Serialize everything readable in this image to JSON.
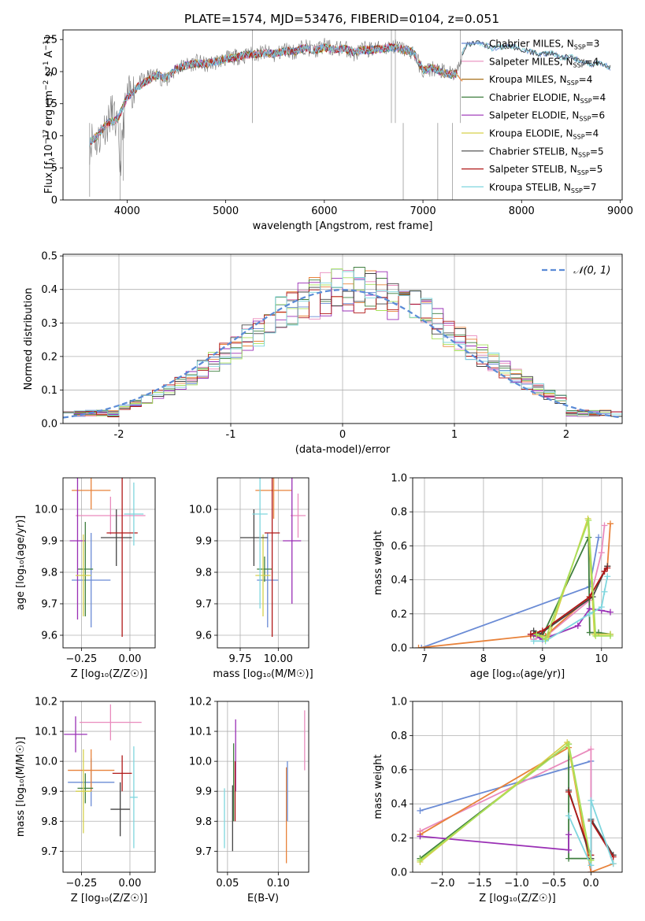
{
  "figure": {
    "title": "PLATE=1574, MJD=53476, FIBERID=0104, z=0.051"
  },
  "colors": {
    "Chabrier MILES": "#6a8bd5",
    "Salpeter MILES": "#e98bbd",
    "Kroupa MILES": "#a8711a",
    "Chabrier ELODIE": "#3f7f3f",
    "Salpeter ELODIE": "#9a2fb5",
    "Kroupa ELODIE": "#d6d04a",
    "Chabrier STELIB": "#444444",
    "Salpeter STELIB": "#b01818",
    "Kroupa STELIB": "#7fd6de",
    "normal_curve": "#5b8bd6",
    "orange": "#e8823a",
    "lime": "#a7e05a"
  },
  "chart_data": [
    {
      "id": "spectrum",
      "type": "line",
      "title": "PLATE=1574, MJD=53476, FIBERID=0104, z=0.051",
      "xlabel": "wavelength [Angstrom, rest frame]",
      "ylabel_parts": [
        "Flux [f",
        "λ",
        "10",
        "−17",
        " erg cm",
        "−2",
        " s",
        "−1",
        " A",
        "−1",
        "]"
      ],
      "xlim": [
        3350,
        9020
      ],
      "ylim": [
        0,
        26.5
      ],
      "xticks": [
        4000,
        5000,
        6000,
        7000,
        8000,
        9000
      ],
      "yticks": [
        0,
        5,
        10,
        15,
        20,
        25
      ],
      "legend_position": "top-right",
      "legend": [
        {
          "label": "Chabrier MILES",
          "nssp": "3"
        },
        {
          "label": "Salpeter MILES",
          "nssp": "4"
        },
        {
          "label": "Kroupa MILES",
          "nssp": "4"
        },
        {
          "label": "Chabrier ELODIE",
          "nssp": "4"
        },
        {
          "label": "Salpeter ELODIE",
          "nssp": "6"
        },
        {
          "label": "Kroupa ELODIE",
          "nssp": "4"
        },
        {
          "label": "Chabrier STELIB",
          "nssp": "5"
        },
        {
          "label": "Salpeter STELIB",
          "nssp": "5"
        },
        {
          "label": "Kroupa STELIB",
          "nssp": "7"
        }
      ],
      "nssp_prefix": "N",
      "nssp_sub": "SSP",
      "data_x": [
        3620,
        3650,
        3700,
        3750,
        3800,
        3850,
        3900,
        3930,
        3970,
        4000,
        4050,
        4100,
        4200,
        4300,
        4400,
        4500,
        4600,
        4700,
        4800,
        4900,
        5000,
        5100,
        5200,
        5300,
        5400,
        5500,
        5600,
        5700,
        5800,
        5900,
        6000,
        6100,
        6200,
        6300,
        6400,
        6500,
        6600,
        6700,
        6800,
        6900,
        7000,
        7100,
        7200,
        7300,
        7350,
        7400,
        7450,
        7500,
        7600,
        7700,
        7800,
        7900,
        8000,
        8100,
        8200,
        8300,
        8400,
        8500,
        8600,
        8700,
        8800,
        8900
      ],
      "data_y": [
        8.5,
        10,
        9,
        11,
        12,
        14,
        11,
        5,
        13,
        16,
        17,
        18,
        19,
        19.5,
        18.5,
        20.5,
        21,
        21.5,
        21,
        21.5,
        22,
        22.3,
        22.5,
        22.8,
        23,
        22.5,
        23.5,
        23,
        24,
        23.2,
        24,
        23.5,
        23.8,
        22.7,
        23.5,
        23.5,
        23.7,
        24,
        23.5,
        23,
        20,
        20.5,
        20,
        19.5,
        20,
        23,
        24,
        24.5,
        24.3,
        23.5,
        23.8,
        24,
        23.5,
        23.2,
        22.5,
        23,
        22,
        22.5,
        21.5,
        21,
        21.5,
        20.5
      ],
      "model_x": [
        3620,
        3700,
        3800,
        3900,
        4000,
        4100,
        4200,
        4300,
        4400,
        4500,
        4600,
        4700,
        4800,
        4900,
        5000,
        5100,
        5200,
        5300,
        5400,
        5500,
        5600,
        5700,
        5800,
        5900,
        6000,
        6100,
        6200,
        6300,
        6400,
        6500,
        6600,
        6700,
        6800,
        6900,
        7000,
        7100,
        7200,
        7300,
        7350
      ],
      "model_y": [
        9,
        10,
        12,
        12.5,
        16,
        17.5,
        18.5,
        19.5,
        19,
        20.5,
        21,
        21.3,
        21.2,
        21.6,
        22,
        22.2,
        22.6,
        22.7,
        22.9,
        22.8,
        23.2,
        23.1,
        23.7,
        23.3,
        23.8,
        23.4,
        23.6,
        23,
        23.4,
        23.4,
        23.6,
        23.8,
        23.4,
        23.1,
        20.2,
        20.6,
        19.8,
        19.5,
        19.8
      ],
      "miles_tail_x": [
        7350,
        7380,
        7400
      ],
      "miles_tail_y": [
        19.5,
        18.8,
        18.5
      ],
      "elodie_stelib_tail_x": [
        7400,
        7450,
        7500,
        7600,
        7700,
        7800,
        7900,
        8000,
        8100,
        8200,
        8300,
        8400,
        8500,
        8600,
        8700,
        8800,
        8900
      ],
      "elodie_stelib_tail_y": [
        23,
        24.2,
        24.5,
        24.4,
        23.6,
        23.9,
        24,
        23.4,
        23.1,
        22.6,
        23,
        22.1,
        22.4,
        21.6,
        21.1,
        21.4,
        20.6
      ],
      "spikes_x": [
        3620,
        3930,
        3960,
        5270,
        6680,
        6800,
        6720,
        7150,
        7300,
        7380
      ],
      "spikes_bottom": [
        0.5,
        0,
        3,
        26.5,
        26.5,
        0,
        26.5,
        0,
        0,
        26.5
      ]
    },
    {
      "id": "residuals",
      "type": "step",
      "xlabel": "(data-model)/error",
      "ylabel": "Normed distribution",
      "xlim": [
        -2.5,
        2.5
      ],
      "ylim": [
        0,
        0.505
      ],
      "xticks": [
        -2,
        -1,
        0,
        1,
        2
      ],
      "yticks": [
        0.0,
        0.1,
        0.2,
        0.3,
        0.4,
        0.5
      ],
      "legend_position": "top-right",
      "legend_label": "𝒩(0, 1)",
      "bin_width": 0.1
    },
    {
      "id": "age-vs-Z",
      "type": "errorbar",
      "xlabel": "Z [log₁₀(Z/Z☉)]",
      "ylabel": "age  [log₁₀(age/yr)]",
      "xlim": [
        -0.345,
        0.13
      ],
      "ylim": [
        9.56,
        10.1
      ],
      "xticks": [
        -0.25,
        0.0
      ],
      "xticklabels": [
        "−0.25",
        "0.00"
      ],
      "yticks": [
        9.6,
        9.7,
        9.8,
        9.9,
        10.0
      ],
      "points": [
        {
          "model": "Chabrier MILES",
          "x": -0.2,
          "xerr": 0.1,
          "y": 9.775,
          "yerr": 0.15
        },
        {
          "model": "Salpeter MILES",
          "x": -0.1,
          "xerr": 0.18,
          "y": 9.98,
          "yerr": 0.06
        },
        {
          "model": "orange",
          "x": -0.2,
          "xerr": 0.1,
          "y": 10.06,
          "yerr": 0.06
        },
        {
          "model": "Chabrier ELODIE",
          "x": -0.23,
          "xerr": 0.04,
          "y": 9.81,
          "yerr": 0.15
        },
        {
          "model": "Salpeter ELODIE",
          "x": -0.27,
          "xerr": 0.04,
          "y": 9.9,
          "yerr": 0.25
        },
        {
          "model": "Kroupa ELODIE",
          "x": -0.24,
          "xerr": 0.04,
          "y": 9.79,
          "yerr": 0.13
        },
        {
          "model": "Chabrier STELIB",
          "x": -0.07,
          "xerr": 0.08,
          "y": 9.91,
          "yerr": 0.09
        },
        {
          "model": "Salpeter STELIB",
          "x": -0.04,
          "xerr": 0.08,
          "y": 9.925,
          "yerr": 0.33
        },
        {
          "model": "Kroupa STELIB",
          "x": 0.02,
          "xerr": 0.05,
          "y": 9.985,
          "yerr": 0.1
        }
      ]
    },
    {
      "id": "age-vs-mass",
      "type": "errorbar",
      "xlabel": "mass [log₁₀(M/M☉)]",
      "ylabel": "",
      "xlim": [
        9.6,
        10.2
      ],
      "ylim": [
        9.56,
        10.1
      ],
      "xticks": [
        9.75,
        10.0
      ],
      "xticklabels": [
        "9.75",
        "10.00"
      ],
      "yticks": [
        9.6,
        9.7,
        9.8,
        9.9,
        10.0
      ],
      "points": [
        {
          "model": "Chabrier MILES",
          "x": 9.93,
          "xerr": 0.07,
          "y": 9.775,
          "yerr": 0.15
        },
        {
          "model": "Salpeter MILES",
          "x": 10.13,
          "xerr": 0.05,
          "y": 9.98,
          "yerr": 0.07
        },
        {
          "model": "orange",
          "x": 9.97,
          "xerr": 0.12,
          "y": 10.06,
          "yerr": 0.09
        },
        {
          "model": "Chabrier ELODIE",
          "x": 9.91,
          "xerr": 0.05,
          "y": 9.81,
          "yerr": 0.04
        },
        {
          "model": "Salpeter ELODIE",
          "x": 10.09,
          "xerr": 0.06,
          "y": 9.9,
          "yerr": 0.2
        },
        {
          "model": "Kroupa ELODIE",
          "x": 9.9,
          "xerr": 0.05,
          "y": 9.79,
          "yerr": 0.13
        },
        {
          "model": "Chabrier STELIB",
          "x": 9.84,
          "xerr": 0.09,
          "y": 9.91,
          "yerr": 0.09
        },
        {
          "model": "Salpeter STELIB",
          "x": 9.96,
          "xerr": 0.05,
          "y": 9.925,
          "yerr": 0.33
        },
        {
          "model": "Kroupa STELIB",
          "x": 9.88,
          "xerr": 0.05,
          "y": 9.985,
          "yerr": 0.3
        }
      ]
    },
    {
      "id": "weight-vs-age",
      "type": "line",
      "xlabel": "age  [log₁₀(age/yr)]",
      "ylabel": "mass weight",
      "xlim": [
        6.8,
        10.35
      ],
      "ylim": [
        0,
        1.0
      ],
      "xticks": [
        7,
        8,
        9,
        10
      ],
      "yticks": [
        0.0,
        0.2,
        0.4,
        0.6,
        0.8,
        1.0
      ],
      "series": [
        {
          "model": "Chabrier MILES",
          "x": [
            6.95,
            9.8,
            9.95
          ],
          "y": [
            0.0,
            0.36,
            0.65
          ]
        },
        {
          "model": "Salpeter MILES",
          "x": [
            8.85,
            9.1,
            9.8,
            10.0,
            10.05
          ],
          "y": [
            0.05,
            0.08,
            0.28,
            0.56,
            0.72
          ]
        },
        {
          "model": "orange",
          "x": [
            6.9,
            8.8,
            9.05,
            9.8,
            10.1,
            10.15
          ],
          "y": [
            0.0,
            0.07,
            0.07,
            0.3,
            0.48,
            0.73
          ]
        },
        {
          "model": "Chabrier ELODIE",
          "x": [
            8.85,
            9.0,
            9.78,
            9.8,
            9.95,
            10.15
          ],
          "y": [
            0.08,
            0.07,
            0.65,
            0.09,
            0.09,
            0.08
          ]
        },
        {
          "model": "Salpeter ELODIE",
          "x": [
            8.8,
            9.0,
            9.6,
            9.8,
            10.0,
            10.15
          ],
          "y": [
            0.08,
            0.05,
            0.13,
            0.23,
            0.22,
            0.21
          ]
        },
        {
          "model": "Kroupa ELODIE",
          "x": [
            8.9,
            9.1,
            9.77,
            9.88,
            10.15
          ],
          "y": [
            0.08,
            0.06,
            0.76,
            0.08,
            0.08
          ]
        },
        {
          "model": "Chabrier STELIB",
          "x": [
            8.85,
            8.95,
            9.85,
            10.05,
            10.1
          ],
          "y": [
            0.1,
            0.08,
            0.3,
            0.45,
            0.48
          ]
        },
        {
          "model": "Salpeter STELIB",
          "x": [
            8.8,
            9.0,
            9.8,
            10.05,
            10.1
          ],
          "y": [
            0.08,
            0.1,
            0.3,
            0.45,
            0.47
          ]
        },
        {
          "model": "Kroupa STELIB",
          "x": [
            8.85,
            9.05,
            9.8,
            10.0,
            10.05,
            10.1
          ],
          "y": [
            0.04,
            0.04,
            0.2,
            0.24,
            0.33,
            0.42
          ]
        },
        {
          "model": "lime",
          "x": [
            8.9,
            9.05,
            9.78,
            9.9,
            10.15
          ],
          "y": [
            0.08,
            0.05,
            0.75,
            0.07,
            0.07
          ]
        }
      ]
    },
    {
      "id": "mass-vs-Z",
      "type": "errorbar",
      "xlabel": "Z [log₁₀(Z/Z☉)]",
      "ylabel": "mass [log₁₀(M/M☉)]",
      "xlim": [
        -0.345,
        0.13
      ],
      "ylim": [
        9.63,
        10.2
      ],
      "xticks": [
        -0.25,
        0.0
      ],
      "xticklabels": [
        "−0.25",
        "0.00"
      ],
      "yticks": [
        9.7,
        9.8,
        9.9,
        10.0,
        10.1,
        10.2
      ],
      "points": [
        {
          "model": "Chabrier MILES",
          "x": -0.2,
          "xerr": 0.12,
          "y": 9.93,
          "yerr": 0.08
        },
        {
          "model": "Salpeter MILES",
          "x": -0.1,
          "xerr": 0.16,
          "y": 10.13,
          "yerr": 0.06
        },
        {
          "model": "orange",
          "x": -0.2,
          "xerr": 0.12,
          "y": 9.97,
          "yerr": 0.07
        },
        {
          "model": "Chabrier ELODIE",
          "x": -0.23,
          "xerr": 0.04,
          "y": 9.91,
          "yerr": 0.05
        },
        {
          "model": "Salpeter ELODIE",
          "x": -0.28,
          "xerr": 0.06,
          "y": 10.09,
          "yerr": 0.06
        },
        {
          "model": "Kroupa ELODIE",
          "x": -0.24,
          "xerr": 0.04,
          "y": 9.9,
          "yerr": 0.14
        },
        {
          "model": "Chabrier STELIB",
          "x": -0.05,
          "xerr": 0.05,
          "y": 9.84,
          "yerr": 0.09
        },
        {
          "model": "Salpeter STELIB",
          "x": -0.04,
          "xerr": 0.05,
          "y": 9.96,
          "yerr": 0.06
        },
        {
          "model": "Kroupa STELIB",
          "x": 0.02,
          "xerr": 0.02,
          "y": 9.88,
          "yerr": 0.17
        }
      ]
    },
    {
      "id": "mass-vs-EBV",
      "type": "errorbar",
      "xlabel": "E(B-V)",
      "ylabel": "",
      "xlim": [
        0.04,
        0.13
      ],
      "ylim": [
        9.63,
        10.2
      ],
      "xticks": [
        0.05,
        0.1
      ],
      "xticklabels": [
        "0.05",
        "0.10"
      ],
      "yticks": [
        9.7,
        9.8,
        9.9,
        10.0,
        10.1,
        10.2
      ],
      "points": [
        {
          "model": "Kroupa STELIB",
          "x": 0.047,
          "xerr": 0.0,
          "y": 9.81,
          "yerr": 0.1
        },
        {
          "model": "Chabrier STELIB",
          "x": 0.055,
          "xerr": 0.0,
          "y": 9.81,
          "yerr": 0.11
        },
        {
          "model": "Chabrier ELODIE",
          "x": 0.056,
          "xerr": 0.0,
          "y": 9.93,
          "yerr": 0.13
        },
        {
          "model": "Salpeter ELODIE",
          "x": 0.058,
          "xerr": 0.0,
          "y": 10.02,
          "yerr": 0.12
        },
        {
          "model": "Salpeter STELIB",
          "x": 0.0575,
          "xerr": 0.0,
          "y": 9.9,
          "yerr": 0.1
        },
        {
          "model": "orange",
          "x": 0.108,
          "xerr": 0.0,
          "y": 9.82,
          "yerr": 0.16
        },
        {
          "model": "Chabrier MILES",
          "x": 0.109,
          "xerr": 0.0,
          "y": 9.9,
          "yerr": 0.1
        },
        {
          "model": "Salpeter MILES",
          "x": 0.126,
          "xerr": 0.0,
          "y": 10.07,
          "yerr": 0.1
        }
      ]
    },
    {
      "id": "weight-vs-Z",
      "type": "line",
      "xlabel": "Z [log₁₀(Z/Z☉)]",
      "ylabel": "mass weight",
      "xlim": [
        -2.4,
        0.42
      ],
      "ylim": [
        0,
        1.0
      ],
      "xticks": [
        -2.0,
        -1.5,
        -1.0,
        -0.5,
        0.0
      ],
      "xticklabels": [
        "−2.0",
        "−1.5",
        "−1.0",
        "−0.5",
        "0.0"
      ],
      "yticks": [
        0.0,
        0.2,
        0.4,
        0.6,
        0.8,
        1.0
      ],
      "series": [
        {
          "model": "Chabrier MILES",
          "x": [
            -2.3,
            0.0,
            0.0
          ],
          "y": [
            0.36,
            0.65,
            0.0
          ]
        },
        {
          "model": "Salpeter MILES",
          "x": [
            -2.3,
            0.0,
            0.0
          ],
          "y": [
            0.24,
            0.72,
            0.0
          ]
        },
        {
          "model": "orange",
          "x": [
            -2.3,
            -0.3,
            0.0,
            0.3
          ],
          "y": [
            0.22,
            0.73,
            0.0,
            0.05
          ]
        },
        {
          "model": "Chabrier ELODIE",
          "x": [
            -2.3,
            -0.3,
            -0.3,
            0.0
          ],
          "y": [
            0.08,
            0.75,
            0.08,
            0.08
          ]
        },
        {
          "model": "Salpeter ELODIE",
          "x": [
            -2.3,
            -0.3,
            -0.3
          ],
          "y": [
            0.21,
            0.13,
            0.22
          ]
        },
        {
          "model": "Kroupa ELODIE",
          "x": [
            -2.3,
            -0.32,
            0.0
          ],
          "y": [
            0.06,
            0.76,
            0.07
          ]
        },
        {
          "model": "Chabrier STELIB",
          "x": [
            -0.3,
            0.0,
            0.0,
            0.3
          ],
          "y": [
            0.48,
            0.08,
            0.31,
            0.1
          ]
        },
        {
          "model": "Salpeter STELIB",
          "x": [
            -0.3,
            0.0,
            0.0,
            0.3
          ],
          "y": [
            0.47,
            0.1,
            0.3,
            0.09
          ]
        },
        {
          "model": "Kroupa STELIB",
          "x": [
            -0.3,
            0.0,
            0.0,
            0.3
          ],
          "y": [
            0.33,
            0.04,
            0.42,
            0.05
          ]
        },
        {
          "model": "lime",
          "x": [
            -2.3,
            -0.3,
            0.0
          ],
          "y": [
            0.07,
            0.75,
            0.07
          ]
        }
      ]
    }
  ]
}
